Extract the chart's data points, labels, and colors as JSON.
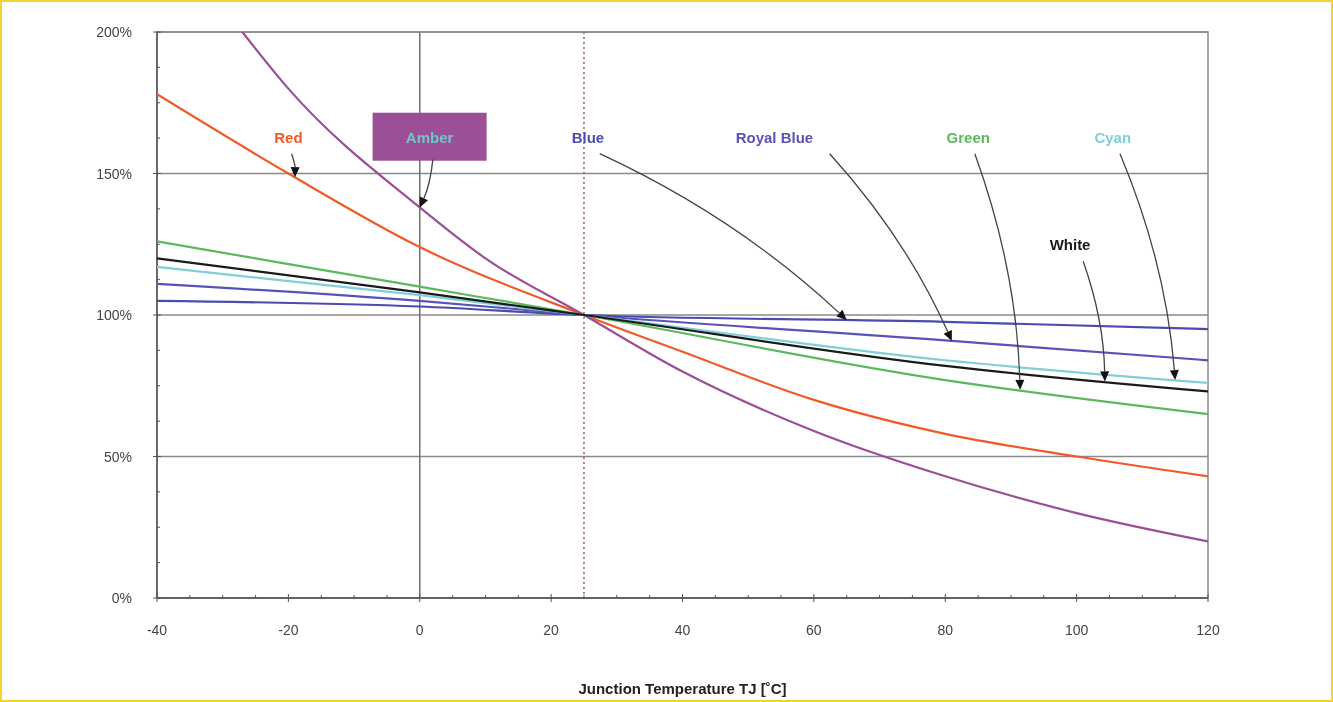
{
  "chart_data": {
    "type": "line",
    "xlabel": "Junction Temperature TJ [˚C]",
    "xlim": [
      -40,
      120
    ],
    "xticks": [
      -40,
      -20,
      0,
      20,
      40,
      60,
      80,
      100,
      120
    ],
    "ylim": [
      0,
      200
    ],
    "yticks": [
      {
        "value": 0,
        "label": "0%"
      },
      {
        "value": 50,
        "label": "50%"
      },
      {
        "value": 100,
        "label": "100%"
      },
      {
        "value": 150,
        "label": "150%"
      },
      {
        "value": 200,
        "label": "200%"
      }
    ],
    "grid": "y",
    "marker": "none",
    "line_style": "solid",
    "ref_lines": [
      {
        "axis": "x",
        "value": 0,
        "color": "#707070",
        "line_style": "solid"
      },
      {
        "axis": "x",
        "value": 25,
        "color": "#a06060",
        "line_style": "dotted"
      }
    ],
    "series": [
      {
        "name": "Red",
        "color": "#f05a28",
        "x": [
          -40,
          -20,
          0,
          25,
          40,
          60,
          80,
          100,
          120
        ],
        "values": [
          178,
          150,
          124,
          100,
          87,
          70,
          58,
          50,
          43
        ]
      },
      {
        "name": "Amber",
        "color": "#9b4f96",
        "x": [
          -27,
          -20,
          0,
          10,
          25,
          40,
          60,
          80,
          100,
          120
        ],
        "values": [
          200,
          180,
          138,
          120,
          100,
          80,
          59,
          43,
          30,
          20
        ]
      },
      {
        "name": "Blue",
        "color": "#4c4cae",
        "x": [
          -40,
          0,
          25,
          80,
          120
        ],
        "values": [
          105,
          103,
          100,
          97.6,
          95
        ]
      },
      {
        "name": "Royal Blue",
        "color": "#5a52b8",
        "x": [
          -40,
          0,
          25,
          80,
          120
        ],
        "values": [
          111,
          105,
          100,
          91,
          84
        ]
      },
      {
        "name": "Green",
        "color": "#5cb85c",
        "x": [
          -40,
          0,
          25,
          80,
          120
        ],
        "values": [
          126,
          110,
          100,
          77,
          65
        ]
      },
      {
        "name": "Cyan",
        "color": "#80cfd8",
        "x": [
          -40,
          0,
          25,
          80,
          120
        ],
        "values": [
          117,
          107,
          100,
          84,
          76
        ]
      },
      {
        "name": "White",
        "color": "#1a1a1a",
        "x": [
          -40,
          0,
          25,
          80,
          120
        ],
        "values": [
          120,
          108,
          100,
          82,
          73
        ]
      }
    ]
  }
}
